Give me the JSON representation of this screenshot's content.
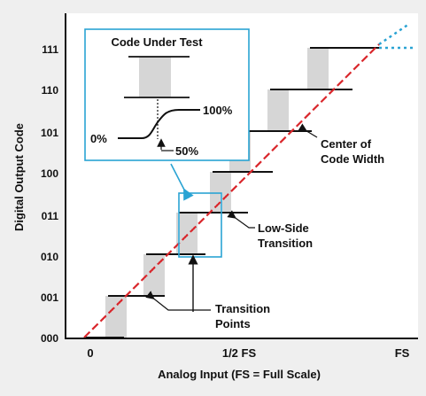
{
  "axes": {
    "xlabel": "Analog Input (FS = Full Scale)",
    "ylabel": "Digital Output Code",
    "x_ticks": [
      "0",
      "1/2 FS",
      "FS"
    ],
    "y_ticks": [
      "000",
      "001",
      "010",
      "011",
      "100",
      "101",
      "110",
      "111"
    ]
  },
  "inset": {
    "title": "Code Under Test",
    "label_low": "0%",
    "label_high": "100%",
    "label_mid": "50%"
  },
  "annotations": {
    "center_of_code_width": [
      "Center of",
      "Code Width"
    ],
    "low_side_transition": [
      "Low-Side",
      "Transition"
    ],
    "transition_points": [
      "Transition",
      "Points"
    ]
  },
  "colors": {
    "background": "#efefef",
    "ideal_line": "#d9262b",
    "inset_border": "#2aa3d3",
    "dotted_extension": "#2aa3d3",
    "noise_lines": "#9a9a9a",
    "step": "#111111"
  }
}
